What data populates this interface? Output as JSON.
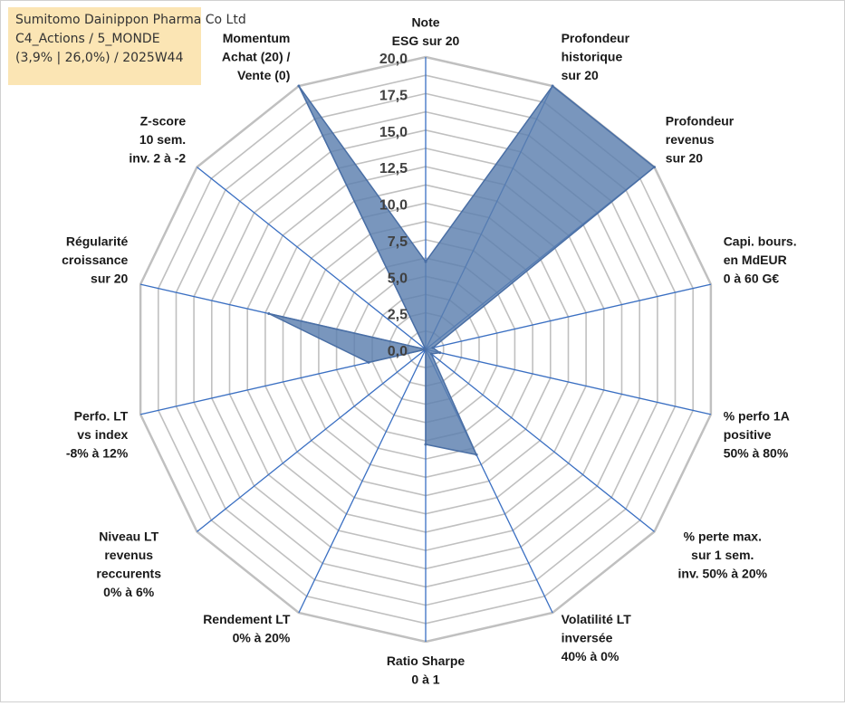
{
  "info_box": {
    "line1": "Sumitomo Dainippon Pharma Co Ltd",
    "line2": "C4_Actions / 5_MONDE",
    "line3": "(3,9% | 26,0%) / 2025W44"
  },
  "chart_data": {
    "type": "radar",
    "title": "",
    "rlim": [
      0,
      20
    ],
    "tick_values": [
      0,
      2.5,
      5,
      7.5,
      10,
      12.5,
      15,
      17.5,
      20
    ],
    "tick_labels": [
      "0,0",
      "2,5",
      "5,0",
      "7,5",
      "10,0",
      "12,5",
      "15,0",
      "17,5",
      "20,0"
    ],
    "axes": [
      {
        "label": [
          "Note",
          "ESG sur 20"
        ],
        "value": 6
      },
      {
        "label": [
          "Profondeur",
          "historique",
          "sur 20"
        ],
        "value": 20
      },
      {
        "label": [
          "Profondeur",
          "revenus",
          "sur 20"
        ],
        "value": 20
      },
      {
        "label": [
          "Capi. bours.",
          "en MdEUR",
          "0 à 60 G€"
        ],
        "value": 0.5
      },
      {
        "label": [
          "% perfo 1A",
          "positive",
          "50% à 80%"
        ],
        "value": 1
      },
      {
        "label": [
          "% perte max.",
          "sur 1 sem.",
          "inv. 50% à 20%"
        ],
        "value": 0.5
      },
      {
        "label": [
          "Volatilité LT",
          "inversée",
          "40% à 0%"
        ],
        "value": 8
      },
      {
        "label": [
          "Ratio Sharpe",
          "0 à 1"
        ],
        "value": 6.5
      },
      {
        "label": [
          "Rendement LT",
          "0% à 20%"
        ],
        "value": 0
      },
      {
        "label": [
          "Niveau LT",
          "revenus",
          "reccurents",
          "0% à 6%"
        ],
        "value": 0
      },
      {
        "label": [
          "Perfo. LT",
          "vs index",
          "-8% à 12%"
        ],
        "value": 4
      },
      {
        "label": [
          "Régularité",
          "croissance",
          "sur 20"
        ],
        "value": 11
      },
      {
        "label": [
          "Z-score",
          "10 sem.",
          "inv. 2 à -2"
        ],
        "value": 0
      },
      {
        "label": [
          "Momentum",
          "Achat (20) /",
          "Vente (0)"
        ],
        "value": 20
      }
    ],
    "series": [
      {
        "name": "Sumitomo Dainippon Pharma Co Ltd",
        "color": "#5b7fae"
      }
    ],
    "colors": {
      "grid": "#c0c0c0",
      "axis": "#3a6fc2",
      "fill": "#5b7fae",
      "text": "#1a1a1a"
    }
  }
}
